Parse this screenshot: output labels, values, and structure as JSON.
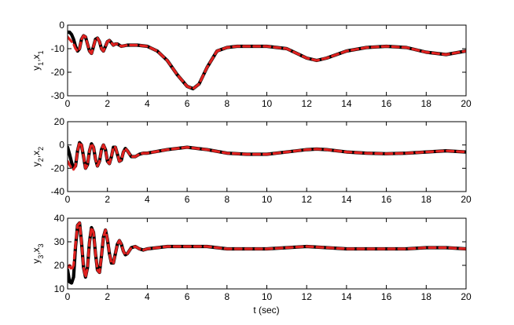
{
  "figure": {
    "xlabel": "t (sec)"
  },
  "colors": {
    "black": "#000000",
    "red": "#e0211f"
  },
  "chart_data": [
    {
      "type": "line",
      "title": "",
      "xlabel": "",
      "ylabel": {
        "main": "y",
        "sub1": "1",
        "sep": ",x",
        "sub2": "1"
      },
      "xlim": [
        0,
        20
      ],
      "ylim": [
        -30,
        0
      ],
      "xticks": [
        0,
        2,
        4,
        6,
        8,
        10,
        12,
        14,
        16,
        18,
        20
      ],
      "yticks": [
        -30,
        -20,
        -10,
        0
      ],
      "grid": false,
      "series": [
        {
          "color": "#000000",
          "style": "solid",
          "x": [
            0,
            0.1,
            0.2,
            0.3,
            0.4,
            0.5,
            0.6,
            0.7,
            0.8,
            0.9,
            1.0,
            1.1,
            1.2,
            1.3,
            1.4,
            1.5,
            1.6,
            1.7,
            1.8,
            1.9,
            2.0,
            2.1,
            2.2,
            2.3,
            2.4,
            2.5,
            2.7,
            3.0,
            3.5,
            4.0,
            4.5,
            5.0,
            5.5,
            6.0,
            6.3,
            6.6,
            7.0,
            7.5,
            8.0,
            8.5,
            9.0,
            10.0,
            11.0,
            12.0,
            12.5,
            13.0,
            14.0,
            15.0,
            16.0,
            17.0,
            18.0,
            19.0,
            20.0
          ],
          "y": [
            -3,
            -3,
            -4,
            -6,
            -9,
            -11,
            -10,
            -6,
            -4.5,
            -5,
            -8,
            -11,
            -12,
            -9,
            -6,
            -5.5,
            -7,
            -10,
            -11,
            -9,
            -7,
            -6.5,
            -7.5,
            -8.5,
            -8,
            -8,
            -9,
            -8.5,
            -8.5,
            -9,
            -11,
            -15,
            -21,
            -26,
            -27,
            -25,
            -18,
            -11,
            -9.5,
            -9,
            -9,
            -9,
            -10,
            -14,
            -15,
            -14,
            -11,
            -9.5,
            -9,
            -9.5,
            -11.5,
            -12.5,
            -11
          ]
        },
        {
          "color": "#e0211f",
          "style": "dashed",
          "x": [
            0,
            0.1,
            0.2,
            0.3,
            0.4,
            0.5,
            0.6,
            0.7,
            0.8,
            0.9,
            1.0,
            1.1,
            1.2,
            1.3,
            1.4,
            1.5,
            1.6,
            1.7,
            1.8,
            1.9,
            2.0,
            2.1,
            2.2,
            2.3,
            2.4,
            2.5,
            2.7,
            3.0,
            3.5,
            4.0,
            4.5,
            5.0,
            5.5,
            6.0,
            6.3,
            6.6,
            7.0,
            7.5,
            8.0,
            8.5,
            9.0,
            10.0,
            11.0,
            12.0,
            12.5,
            13.0,
            14.0,
            15.0,
            16.0,
            17.0,
            18.0,
            19.0,
            20.0
          ],
          "y": [
            -5,
            -6,
            -7,
            -8,
            -10,
            -11,
            -10,
            -6,
            -4.5,
            -5,
            -8,
            -11,
            -12,
            -9,
            -6,
            -5.5,
            -7,
            -10,
            -11,
            -9,
            -7,
            -6.5,
            -7.5,
            -8.5,
            -8,
            -8,
            -9,
            -8.5,
            -8.5,
            -9,
            -11,
            -15,
            -21,
            -26,
            -27,
            -25,
            -18,
            -11,
            -9.5,
            -9,
            -9,
            -9,
            -10,
            -14,
            -15,
            -14,
            -11,
            -9.5,
            -9,
            -9.5,
            -11.5,
            -12.5,
            -11
          ]
        }
      ]
    },
    {
      "type": "line",
      "title": "",
      "xlabel": "",
      "ylabel": {
        "main": "y",
        "sub1": "2",
        "sep": ",x",
        "sub2": "2"
      },
      "xlim": [
        0,
        20
      ],
      "ylim": [
        -40,
        20
      ],
      "xticks": [
        0,
        2,
        4,
        6,
        8,
        10,
        12,
        14,
        16,
        18,
        20
      ],
      "yticks": [
        -40,
        -20,
        0,
        20
      ],
      "grid": false,
      "series": [
        {
          "color": "#000000",
          "style": "solid",
          "x": [
            0,
            0.1,
            0.2,
            0.3,
            0.4,
            0.5,
            0.6,
            0.7,
            0.8,
            0.9,
            1.0,
            1.1,
            1.2,
            1.3,
            1.4,
            1.5,
            1.6,
            1.7,
            1.8,
            1.9,
            2.0,
            2.1,
            2.2,
            2.3,
            2.4,
            2.5,
            2.6,
            2.7,
            2.8,
            2.9,
            3.0,
            3.2,
            3.4,
            3.6,
            3.8,
            4.0,
            5.0,
            6.0,
            7.0,
            8.0,
            9.0,
            10.0,
            11.0,
            12.0,
            12.5,
            13.0,
            14.0,
            15.0,
            16.0,
            17.0,
            18.0,
            19.0,
            20.0
          ],
          "y": [
            -2,
            -8,
            -15,
            -20,
            -18,
            -5,
            2,
            0,
            -10,
            -20,
            -17,
            -5,
            1,
            -2,
            -12,
            -18,
            -14,
            -4,
            0,
            -4,
            -14,
            -16,
            -10,
            -2,
            -2,
            -8,
            -14,
            -13,
            -6,
            -3,
            -5,
            -10,
            -10,
            -8,
            -7,
            -7,
            -4,
            -2,
            -4,
            -7,
            -8,
            -8,
            -6,
            -4,
            -3.5,
            -4,
            -6,
            -7,
            -7.5,
            -7,
            -6,
            -5,
            -6
          ]
        },
        {
          "color": "#e0211f",
          "style": "dashed",
          "x": [
            0,
            0.1,
            0.2,
            0.3,
            0.4,
            0.5,
            0.6,
            0.7,
            0.8,
            0.9,
            1.0,
            1.1,
            1.2,
            1.3,
            1.4,
            1.5,
            1.6,
            1.7,
            1.8,
            1.9,
            2.0,
            2.1,
            2.2,
            2.3,
            2.4,
            2.5,
            2.6,
            2.7,
            2.8,
            2.9,
            3.0,
            3.2,
            3.4,
            3.6,
            3.8,
            4.0,
            5.0,
            6.0,
            7.0,
            8.0,
            9.0,
            10.0,
            11.0,
            12.0,
            12.5,
            13.0,
            14.0,
            15.0,
            16.0,
            17.0,
            18.0,
            19.0,
            20.0
          ],
          "y": [
            -14,
            -17,
            -20,
            -21,
            -18,
            -5,
            2,
            0,
            -10,
            -20,
            -17,
            -5,
            1,
            -2,
            -12,
            -18,
            -14,
            -4,
            0,
            -4,
            -14,
            -16,
            -10,
            -2,
            -2,
            -8,
            -14,
            -13,
            -6,
            -3,
            -5,
            -10,
            -10,
            -8,
            -7,
            -7,
            -4,
            -2,
            -4,
            -7,
            -8,
            -8,
            -6,
            -4,
            -3.5,
            -4,
            -6,
            -7,
            -7.5,
            -7,
            -6,
            -5,
            -6
          ]
        }
      ]
    },
    {
      "type": "line",
      "title": "",
      "xlabel": "t (sec)",
      "ylabel": {
        "main": "y",
        "sub1": "3",
        "sep": ",x",
        "sub2": "3"
      },
      "xlim": [
        0,
        20
      ],
      "ylim": [
        10,
        40
      ],
      "xticks": [
        0,
        2,
        4,
        6,
        8,
        10,
        12,
        14,
        16,
        18,
        20
      ],
      "yticks": [
        10,
        20,
        30,
        40
      ],
      "grid": false,
      "series": [
        {
          "color": "#000000",
          "style": "solid",
          "x": [
            0,
            0.1,
            0.2,
            0.3,
            0.4,
            0.5,
            0.6,
            0.7,
            0.8,
            0.9,
            1.0,
            1.1,
            1.2,
            1.3,
            1.4,
            1.5,
            1.6,
            1.7,
            1.8,
            1.9,
            2.0,
            2.1,
            2.2,
            2.3,
            2.4,
            2.5,
            2.6,
            2.7,
            2.8,
            2.9,
            3.0,
            3.2,
            3.4,
            3.6,
            3.8,
            4.0,
            5.0,
            6.0,
            7.0,
            8.0,
            9.0,
            10.0,
            11.0,
            12.0,
            13.0,
            14.0,
            15.0,
            16.0,
            17.0,
            18.0,
            19.0,
            20.0
          ],
          "y": [
            18,
            13,
            12.5,
            15,
            28,
            37,
            38,
            30,
            19,
            15,
            19,
            30,
            36,
            34,
            25,
            18,
            17,
            24,
            32,
            35,
            31,
            25,
            21,
            21,
            25,
            29,
            30.5,
            29,
            26,
            24.5,
            25,
            27.5,
            28,
            27,
            26.5,
            27,
            28,
            28,
            28,
            27,
            27,
            27,
            27.5,
            28,
            27.5,
            27,
            27,
            27,
            27,
            27.5,
            27.5,
            27
          ]
        },
        {
          "color": "#e0211f",
          "style": "dashed",
          "x": [
            0,
            0.1,
            0.2,
            0.3,
            0.4,
            0.5,
            0.6,
            0.7,
            0.8,
            0.9,
            1.0,
            1.1,
            1.2,
            1.3,
            1.4,
            1.5,
            1.6,
            1.7,
            1.8,
            1.9,
            2.0,
            2.1,
            2.2,
            2.3,
            2.4,
            2.5,
            2.6,
            2.7,
            2.8,
            2.9,
            3.0,
            3.2,
            3.4,
            3.6,
            3.8,
            4.0,
            5.0,
            6.0,
            7.0,
            8.0,
            9.0,
            10.0,
            11.0,
            12.0,
            13.0,
            14.0,
            15.0,
            16.0,
            17.0,
            18.0,
            19.0,
            20.0
          ],
          "y": [
            19,
            20,
            18,
            20,
            29,
            37,
            38,
            30,
            19,
            15,
            19,
            30,
            36,
            34,
            25,
            18,
            17,
            24,
            32,
            35,
            31,
            25,
            21,
            21,
            25,
            29,
            30.5,
            29,
            26,
            24.5,
            25,
            27.5,
            28,
            27,
            26.5,
            27,
            28,
            28,
            28,
            27,
            27,
            27,
            27.5,
            28,
            27.5,
            27,
            27,
            27,
            27,
            27.5,
            27.5,
            27
          ]
        }
      ]
    }
  ]
}
